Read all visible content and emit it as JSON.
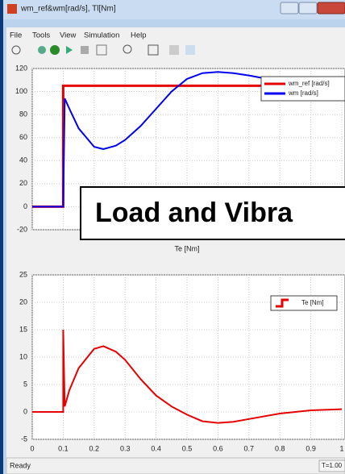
{
  "window": {
    "title": "wm_ref&wm[rad/s], Tl[Nm]",
    "menu": [
      "File",
      "Tools",
      "View",
      "Simulation",
      "Help"
    ],
    "status": "Ready",
    "time": "T=1.00"
  },
  "chart_data": [
    {
      "type": "line",
      "xlim": [
        0,
        1
      ],
      "ylim": [
        -20,
        120
      ],
      "yticks": [
        -20,
        0,
        20,
        40,
        60,
        80,
        100,
        120
      ],
      "grid": true,
      "legend": "top-right",
      "annotation": "Load and Vibra",
      "x": [
        0,
        0.1,
        0.1,
        0.105,
        0.12,
        0.15,
        0.2,
        0.23,
        0.27,
        0.3,
        0.35,
        0.4,
        0.45,
        0.5,
        0.55,
        0.6,
        0.65,
        0.7,
        0.8,
        0.9,
        1
      ],
      "series": [
        {
          "name": "wm_ref [rad/s]",
          "color": "#e60000",
          "values": [
            0,
            0,
            105,
            105,
            105,
            105,
            105,
            105,
            105,
            105,
            105,
            105,
            105,
            105,
            105,
            105,
            105,
            105,
            105,
            105,
            105
          ]
        },
        {
          "name": "wm [rad/s]",
          "color": "#0000f0",
          "values": [
            0,
            0,
            0,
            94,
            85,
            68,
            52,
            50,
            53,
            58,
            70,
            85,
            100,
            111,
            116,
            117,
            116,
            114,
            109,
            106,
            104
          ]
        }
      ]
    },
    {
      "type": "line",
      "title": "Te [Nm]",
      "xlim": [
        0,
        1
      ],
      "xticks": [
        0,
        0.1,
        0.2,
        0.3,
        0.4,
        0.5,
        0.6,
        0.7,
        0.8,
        0.9,
        1
      ],
      "ylim": [
        -5,
        25
      ],
      "yticks": [
        -5,
        0,
        5,
        10,
        15,
        20,
        25
      ],
      "grid": true,
      "legend": "top-right",
      "x": [
        0,
        0.1,
        0.1,
        0.105,
        0.12,
        0.15,
        0.2,
        0.23,
        0.27,
        0.3,
        0.35,
        0.4,
        0.45,
        0.5,
        0.55,
        0.6,
        0.65,
        0.7,
        0.8,
        0.9,
        1
      ],
      "series": [
        {
          "name": "Te [Nm]",
          "color": "#e60000",
          "values": [
            0,
            0,
            15,
            1,
            4,
            8,
            11.5,
            12,
            11,
            9.5,
            6,
            3,
            1,
            -0.5,
            -1.7,
            -2,
            -1.8,
            -1.3,
            -0.3,
            0.3,
            0.5
          ]
        }
      ]
    }
  ]
}
